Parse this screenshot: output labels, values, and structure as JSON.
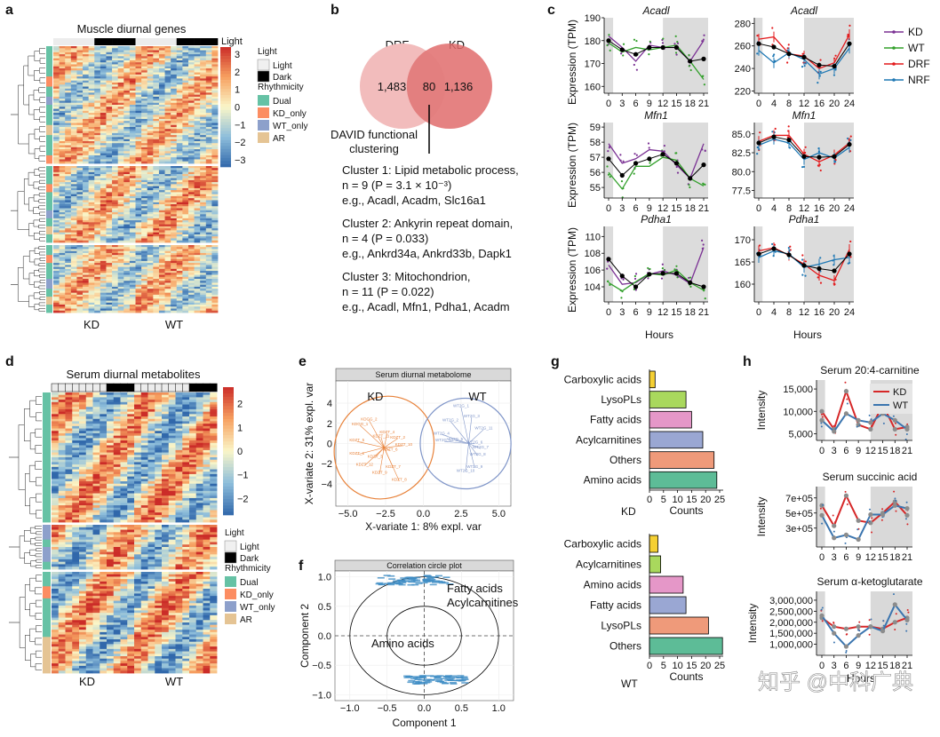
{
  "panels": {
    "a": {
      "letter": "a",
      "title": "Muscle diurnal genes",
      "x_labels": [
        "KD",
        "WT"
      ],
      "colorbar_title": "Light",
      "colorbar_ticks": [
        "3",
        "2",
        "1",
        "0",
        "−1",
        "−2",
        "−3"
      ],
      "legend": {
        "light_title": "Light",
        "light_items": [
          {
            "label": "Light",
            "color": "#f0f0f0"
          },
          {
            "label": "Dark",
            "color": "#000000"
          }
        ],
        "rhythm_title": "Rhythmicity",
        "rhythm_items": [
          {
            "label": "Dual",
            "color": "#66c2a5"
          },
          {
            "label": "KD_only",
            "color": "#fc8d62"
          },
          {
            "label": "WT_only",
            "color": "#8da0cb"
          },
          {
            "label": "AR",
            "color": "#e5c494"
          }
        ]
      }
    },
    "b": {
      "letter": "b",
      "venn_left_label": "DRF",
      "venn_right_label": "KD",
      "venn_left_count": "1,483",
      "venn_overlap_count": "80",
      "venn_right_count": "1,136",
      "david_line1": "DAVID functional",
      "david_line2": "clustering",
      "clusters": [
        {
          "line1": "Cluster 1: Lipid metabolic process,",
          "line2": "n = 9 (P = 3.1 × 10⁻³)",
          "line3": "e.g., Acadl, Acadm, Slc16a1"
        },
        {
          "line1": "Cluster 2: Ankyrin repeat domain,",
          "line2": "n = 4 (P = 0.033)",
          "line3": "e.g., Ankrd34a, Ankrd33b, Dapk1"
        },
        {
          "line1": "Cluster 3: Mitochondrion,",
          "line2": "n = 11 (P = 0.022)",
          "line3": "e.g., Acadl, Mfn1, Pdha1, Acadm"
        }
      ]
    },
    "c": {
      "letter": "c",
      "ylabel": "Expression (TPM)",
      "xlabel": "Hours",
      "legend": [
        {
          "label": "KD",
          "color": "#7b3294"
        },
        {
          "label": "WT",
          "color": "#33a02c"
        },
        {
          "label": "DRF",
          "color": "#e31a1c"
        },
        {
          "label": "NRF",
          "color": "#1f78b4"
        }
      ]
    },
    "d": {
      "letter": "d",
      "title": "Serum diurnal metabolites",
      "x_labels": [
        "KD",
        "WT"
      ],
      "colorbar_ticks": [
        "2",
        "1",
        "0",
        "−1",
        "−2"
      ],
      "legend": {
        "light_title": "Light",
        "light_items": [
          {
            "label": "Light",
            "color": "#f0f0f0"
          },
          {
            "label": "Dark",
            "color": "#000000"
          }
        ],
        "rhythm_title": "Rhythmicity",
        "rhythm_items": [
          {
            "label": "Dual",
            "color": "#66c2a5"
          },
          {
            "label": "KD_only",
            "color": "#fc8d62"
          },
          {
            "label": "WT_only",
            "color": "#8da0cb"
          },
          {
            "label": "AR",
            "color": "#e5c494"
          }
        ]
      }
    },
    "e": {
      "letter": "e"
    },
    "f": {
      "letter": "f"
    },
    "g": {
      "letter": "g"
    },
    "h": {
      "letter": "h"
    }
  },
  "watermark": "知乎 @中科广典",
  "chart_data": [
    {
      "type": "heatmap",
      "panel": "a",
      "title": "Muscle diurnal genes",
      "column_groups": [
        "KD",
        "WT"
      ],
      "row_blocks": 3,
      "colorbar_label": "Light",
      "colorbar_range": [
        -3,
        3
      ]
    },
    {
      "type": "venn",
      "panel": "b",
      "sets": [
        "DRF",
        "KD"
      ],
      "counts": {
        "DRF_only": 1483,
        "overlap": 80,
        "KD_only": 1136
      }
    },
    {
      "type": "line",
      "panel": "c",
      "gene": "Acadl",
      "series": [
        {
          "name": "KD"
        },
        {
          "name": "WT"
        },
        {
          "name": "mean"
        }
      ],
      "x": [
        0,
        3,
        6,
        9,
        12,
        15,
        18,
        21
      ],
      "values": [
        [
          182,
          177,
          171,
          178,
          177,
          177,
          171,
          180
        ],
        [
          179,
          175,
          177,
          176,
          177,
          178,
          171,
          163
        ],
        [
          180,
          176,
          174,
          177,
          177,
          177,
          171,
          172
        ]
      ],
      "ylim": [
        157,
        190
      ],
      "yticks": [
        160,
        170,
        180,
        190
      ],
      "shaded_x": [
        [
          0,
          1
        ],
        [
          12,
          21
        ]
      ]
    },
    {
      "type": "line",
      "panel": "c",
      "gene": "Acadl",
      "series": [
        {
          "name": "DRF"
        },
        {
          "name": "NRF"
        },
        {
          "name": "mean"
        }
      ],
      "x": [
        0,
        4,
        8,
        12,
        16,
        20,
        24
      ],
      "values": [
        [
          266,
          268,
          253,
          251,
          240,
          245,
          270
        ],
        [
          256,
          245,
          254,
          248,
          235,
          240,
          258
        ],
        [
          262,
          259,
          253,
          250,
          243,
          242,
          262
        ]
      ],
      "ylim": [
        218,
        285
      ],
      "yticks": [
        220,
        240,
        260,
        280
      ],
      "shaded_x": [
        [
          0,
          1
        ],
        [
          12,
          24
        ]
      ]
    },
    {
      "type": "line",
      "panel": "c",
      "gene": "Mfn1",
      "series": [
        {
          "name": "KD"
        },
        {
          "name": "WT"
        },
        {
          "name": "mean"
        }
      ],
      "x": [
        0,
        3,
        6,
        9,
        12,
        15,
        18,
        21
      ],
      "values": [
        [
          57.9,
          56.6,
          56.9,
          57.5,
          57.4,
          56.5,
          55.6,
          57.9
        ],
        [
          56.0,
          54.9,
          56.4,
          56.4,
          57.0,
          56.8,
          55.6,
          55.1
        ],
        [
          56.9,
          55.8,
          56.6,
          56.9,
          57.2,
          56.6,
          55.6,
          56.5
        ]
      ],
      "ylim": [
        54.3,
        59.3
      ],
      "yticks": [
        55,
        56,
        57,
        58,
        59
      ],
      "shaded_x": [
        [
          0,
          1
        ],
        [
          12,
          21
        ]
      ]
    },
    {
      "type": "line",
      "panel": "c",
      "gene": "Mfn1",
      "series": [
        {
          "name": "DRF"
        },
        {
          "name": "NRF"
        },
        {
          "name": "mean"
        }
      ],
      "x": [
        0,
        4,
        8,
        12,
        16,
        20,
        24
      ],
      "values": [
        [
          84.0,
          84.8,
          84.8,
          82.3,
          81.3,
          82.2,
          83.8
        ],
        [
          83.5,
          84.3,
          83.8,
          81.6,
          82.5,
          81.8,
          83.2
        ],
        [
          83.8,
          84.6,
          84.2,
          82.0,
          81.9,
          82.0,
          83.6
        ]
      ],
      "ylim": [
        76.5,
        86.5
      ],
      "yticks": [
        77.5,
        80.0,
        82.5,
        85.0
      ],
      "shaded_x": [
        [
          0,
          1
        ],
        [
          12,
          24
        ]
      ]
    },
    {
      "type": "line",
      "panel": "c",
      "gene": "Pdha1",
      "series": [
        {
          "name": "KD"
        },
        {
          "name": "WT"
        },
        {
          "name": "mean"
        }
      ],
      "x": [
        0,
        3,
        6,
        9,
        12,
        15,
        18,
        21
      ],
      "values": [
        [
          106.6,
          104.3,
          104.5,
          105.5,
          105.9,
          105.4,
          104.4,
          108.7
        ],
        [
          104.5,
          103.5,
          104.6,
          105.6,
          105.4,
          106.0,
          104.5,
          103.6
        ],
        [
          107.3,
          105.3,
          104.0,
          105.5,
          105.6,
          105.6,
          104.5,
          104.0
        ]
      ],
      "ylim": [
        102.2,
        111.2
      ],
      "yticks": [
        104,
        106,
        108,
        110
      ],
      "shaded_x": [
        [
          0,
          1
        ],
        [
          12,
          21
        ]
      ]
    },
    {
      "type": "line",
      "panel": "c",
      "gene": "Pdha1",
      "series": [
        {
          "name": "DRF"
        },
        {
          "name": "NRF"
        },
        {
          "name": "mean"
        }
      ],
      "x": [
        0,
        4,
        8,
        12,
        16,
        20,
        24
      ],
      "values": [
        [
          167.5,
          168.2,
          166.5,
          164.5,
          162.0,
          160.8,
          167.8
        ],
        [
          166.0,
          167.5,
          166.8,
          163.8,
          164.5,
          165.5,
          166.0
        ],
        [
          166.8,
          168.0,
          166.6,
          164.2,
          163.5,
          163.0,
          166.8
        ]
      ],
      "ylim": [
        156,
        173
      ],
      "yticks": [
        160,
        165,
        170
      ],
      "shaded_x": [
        [
          0,
          1
        ],
        [
          12,
          24
        ]
      ]
    },
    {
      "type": "heatmap",
      "panel": "d",
      "title": "Serum diurnal metabolites",
      "column_groups": [
        "KD",
        "WT"
      ],
      "row_blocks": 3,
      "colorbar_range": [
        -2.5,
        2.5
      ]
    },
    {
      "type": "scatter",
      "panel": "e",
      "title": "Serum diurnal metabolome",
      "xlabel": "X-variate 1: 8% expl. var",
      "ylabel": "X-variate 2: 31% expl. var",
      "xlim": [
        -5.8,
        5.8
      ],
      "ylim": [
        -6.2,
        6.2
      ],
      "xticks": [
        -5.0,
        -2.5,
        0.0,
        2.5,
        5.0
      ],
      "yticks": [
        -4,
        -2,
        0,
        2,
        4
      ],
      "groups": [
        {
          "label": "KD",
          "color": "#e8823a",
          "centroid": [
            -2.6,
            -0.4
          ],
          "points": [
            [
              -4.2,
              1.8
            ],
            [
              -3.6,
              2.3
            ],
            [
              -4.4,
              0.2
            ],
            [
              -3.2,
              -1.4
            ],
            [
              -4.4,
              -1.1
            ],
            [
              -2.4,
              1.0
            ],
            [
              -1.7,
              0.5
            ],
            [
              -2.2,
              -0.7
            ],
            [
              -2.0,
              -2.4
            ],
            [
              -1.6,
              -3.7
            ],
            [
              -2.9,
              -3.0
            ],
            [
              -1.3,
              -0.2
            ],
            [
              -2.8,
              0.6
            ],
            [
              -3.9,
              -2.2
            ]
          ],
          "point_labels": [
            "KDGG_1",
            "KDGG_2",
            "KDZT_5",
            "KDZT_3",
            "KDZT_1",
            "KDZT_4",
            "KDZT_2",
            "KDZT_6",
            "KDZT_7",
            "KDZT_8",
            "KDZT_9",
            "KDZT_10",
            "KDZT_11",
            "KDZT_12"
          ],
          "ellipse": {
            "center": [
              -2.6,
              -0.4
            ],
            "radii": [
              3.5,
              4.8
            ],
            "angle_deg": -55
          }
        },
        {
          "label": "WT",
          "color": "#7f95c8",
          "centroid": [
            3.0,
            0.0
          ],
          "points": [
            [
              2.5,
              3.6
            ],
            [
              1.8,
              2.2
            ],
            [
              3.2,
              2.6
            ],
            [
              1.2,
              0.9
            ],
            [
              2.1,
              0.3
            ],
            [
              3.4,
              0.0
            ],
            [
              3.8,
              -0.5
            ],
            [
              3.6,
              -1.2
            ],
            [
              3.4,
              -2.4
            ],
            [
              2.8,
              -2.8
            ],
            [
              4.0,
              1.4
            ],
            [
              1.4,
              0.2
            ]
          ],
          "point_labels": [
            "WT2G_1",
            "WT2G_2",
            "WT2G_3",
            "WT2G_4",
            "WT2G_5",
            "WT2G_6",
            "WT2G_7",
            "WT2G_8",
            "WT2G_9",
            "WT2G_10",
            "WT2G_11",
            "WT2G_12"
          ],
          "ellipse": {
            "center": [
              2.8,
              0.0
            ],
            "radii": [
              3.0,
              4.5
            ],
            "angle_deg": -50
          }
        }
      ]
    },
    {
      "type": "scatter",
      "panel": "f",
      "title": "Correlation circle plot",
      "xlabel": "Component 1",
      "ylabel": "Component 2",
      "xlim": [
        -1.2,
        1.2
      ],
      "ylim": [
        -1.1,
        1.1
      ],
      "xticks": [
        -1.0,
        -0.5,
        0.0,
        0.5,
        1.0
      ],
      "yticks": [
        -1.0,
        -0.5,
        0.0,
        0.5,
        1.0
      ],
      "annotations": [
        "Fatty acids",
        "Acylcarnitines",
        "Amino acids"
      ],
      "clusters": [
        {
          "name": "upper",
          "x_range": [
            -0.62,
            0.35
          ],
          "y_range": [
            0.86,
            1.02
          ]
        },
        {
          "name": "lower",
          "x_range": [
            -0.25,
            0.55
          ],
          "y_range": [
            -0.82,
            -0.68
          ]
        }
      ]
    },
    {
      "type": "bar",
      "panel": "g",
      "group": "KD",
      "orientation": "horizontal",
      "categories": [
        "Carboxylic acids",
        "LysoPLs",
        "Fatty acids",
        "Acylcarnitines",
        "Others",
        "Amino acids"
      ],
      "values": [
        2,
        13,
        15,
        19,
        23,
        24
      ],
      "colors": [
        "#f5d033",
        "#a9d85d",
        "#e597c8",
        "#9aa7d3",
        "#ef9a7a",
        "#5dbc97"
      ],
      "xlabel": "Counts",
      "xlim": [
        0,
        25
      ],
      "xticks": [
        0,
        5,
        10,
        15,
        20,
        25
      ]
    },
    {
      "type": "bar",
      "panel": "g",
      "group": "WT",
      "orientation": "horizontal",
      "categories": [
        "Carboxylic acids",
        "Acylcarnitines",
        "Amino acids",
        "Fatty acids",
        "LysoPLs",
        "Others"
      ],
      "values": [
        3,
        4,
        12,
        13,
        21,
        26
      ],
      "colors": [
        "#f5d033",
        "#a9d85d",
        "#e597c8",
        "#9aa7d3",
        "#ef9a7a",
        "#5dbc97"
      ],
      "xlabel": "Counts",
      "xlim": [
        0,
        25
      ],
      "xticks": [
        0,
        5,
        10,
        15,
        20,
        25
      ]
    },
    {
      "type": "line",
      "panel": "h",
      "title": "Serum 20:4-carnitine",
      "ylabel": "Intensity",
      "x": [
        0,
        3,
        6,
        9,
        12,
        15,
        18,
        21
      ],
      "series": [
        {
          "name": "KD",
          "color": "#d62728",
          "values": [
            10000,
            6000,
            14500,
            7000,
            6000,
            11500,
            6000,
            6500
          ]
        },
        {
          "name": "WT",
          "color": "#3b75af",
          "values": [
            8000,
            5500,
            9500,
            8000,
            7500,
            9500,
            8000,
            6000
          ]
        }
      ],
      "ylim": [
        3500,
        17000
      ],
      "yticks": [
        5000,
        10000,
        15000
      ],
      "ytick_labels": [
        "5,000",
        "10,000",
        "15,000"
      ],
      "shaded_x": [
        [
          0,
          0.8
        ],
        [
          12,
          21
        ]
      ],
      "legend": "top-right"
    },
    {
      "type": "line",
      "panel": "h",
      "title": "Serum succinic acid",
      "ylabel": "Intensity",
      "x": [
        0,
        3,
        6,
        9,
        12,
        15,
        18,
        21
      ],
      "series": [
        {
          "name": "KD",
          "color": "#d62728",
          "values": [
            600000,
            330000,
            730000,
            400000,
            370000,
            500000,
            650000,
            470000
          ]
        },
        {
          "name": "WT",
          "color": "#3b75af",
          "values": [
            470000,
            170000,
            210000,
            150000,
            480000,
            480000,
            600000,
            560000
          ]
        }
      ],
      "ylim": [
        50000,
        850000
      ],
      "yticks": [
        300000,
        500000,
        700000
      ],
      "ytick_labels": [
        "3e+05",
        "5e+05",
        "7e+05"
      ],
      "shaded_x": [
        [
          0,
          0.8
        ],
        [
          12,
          21
        ]
      ]
    },
    {
      "type": "line",
      "panel": "h",
      "title": "Serum α-ketoglutarate",
      "ylabel": "Intensity",
      "xlabel": "Hours",
      "x": [
        0,
        3,
        6,
        9,
        12,
        15,
        18,
        21
      ],
      "series": [
        {
          "name": "KD",
          "color": "#d62728",
          "values": [
            2200000,
            1800000,
            1700000,
            1800000,
            1800000,
            1700000,
            2000000,
            2200000
          ]
        },
        {
          "name": "WT",
          "color": "#3b75af",
          "values": [
            2300000,
            1500000,
            900000,
            1400000,
            1800000,
            1600000,
            2800000,
            2100000
          ]
        }
      ],
      "ylim": [
        500000,
        3400000
      ],
      "yticks": [
        1000000,
        1500000,
        2000000,
        2500000,
        3000000
      ],
      "ytick_labels": [
        "1,000,000",
        "1,500,000",
        "2,000,000",
        "2,500,000",
        "3,000,000"
      ],
      "shaded_x": [
        [
          0,
          0.8
        ],
        [
          12,
          21
        ]
      ]
    }
  ]
}
